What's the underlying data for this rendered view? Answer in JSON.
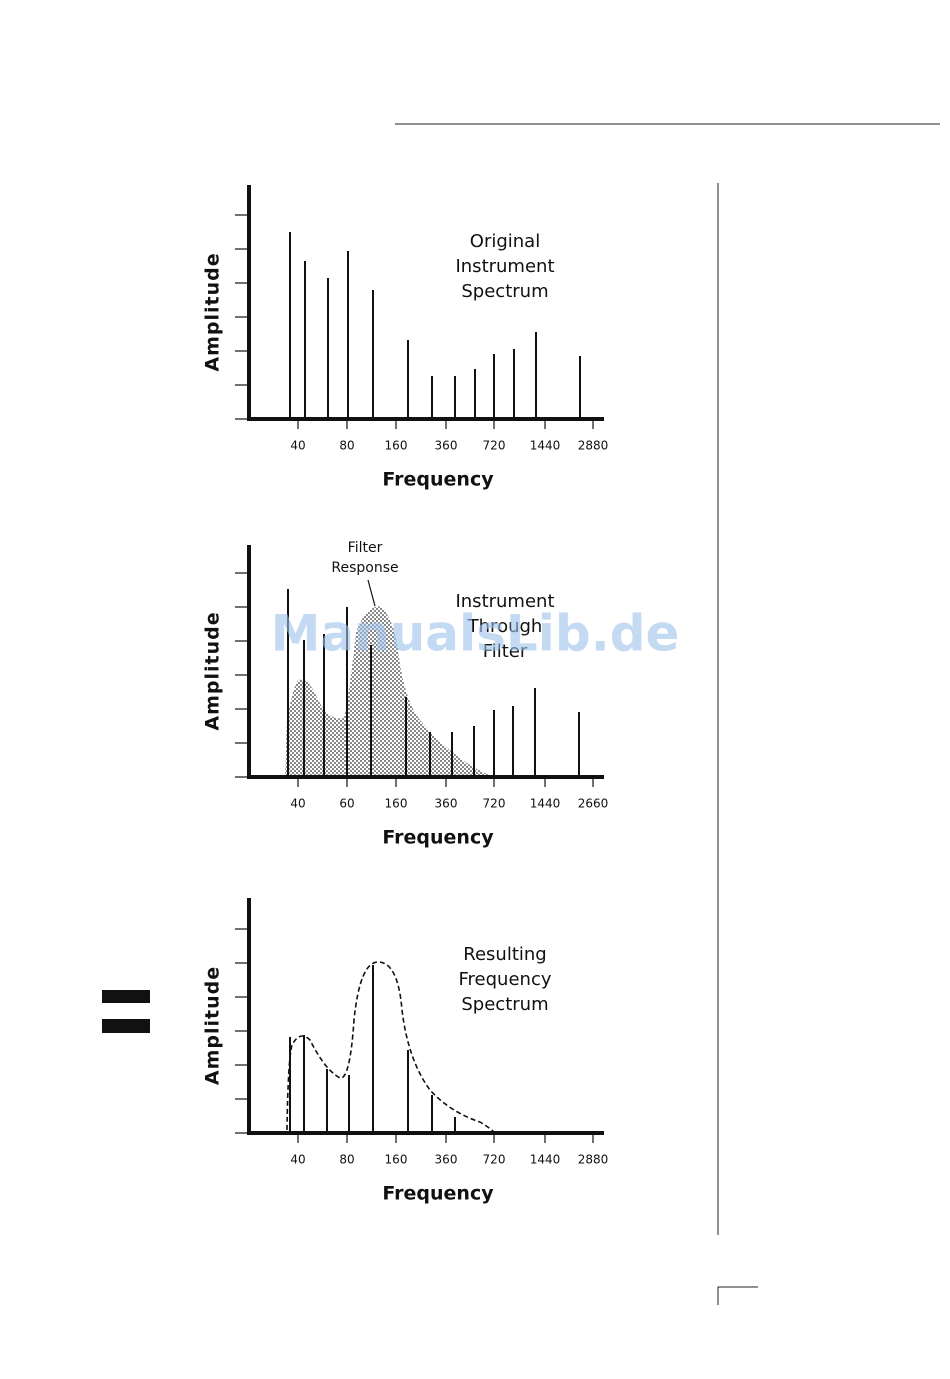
{
  "figures": [
    {
      "caption": [
        "Original",
        "Instrument",
        "Spectrum"
      ],
      "y_label": "Amplitude",
      "x_label": "Frequency",
      "x_ticks": [
        40,
        80,
        160,
        360,
        720,
        1440,
        2880
      ]
    },
    {
      "caption": [
        "Instrument",
        "Through",
        "Filter"
      ],
      "annotation": [
        "Filter",
        "Response"
      ],
      "y_label": "Amplitude",
      "x_label": "Frequency",
      "x_ticks": [
        40,
        60,
        160,
        360,
        720,
        1440,
        2660
      ]
    },
    {
      "caption": [
        "Resulting",
        "Frequency",
        "Spectrum"
      ],
      "y_label": "Amplitude",
      "x_label": "Frequency",
      "x_ticks": [
        40,
        80,
        160,
        360,
        720,
        1440,
        2880
      ]
    }
  ],
  "watermark": "ManualsLib.de"
}
